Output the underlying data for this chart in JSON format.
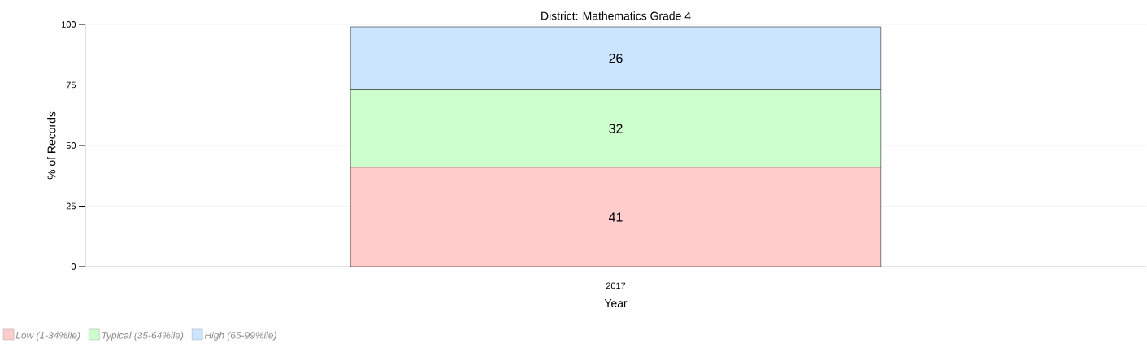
{
  "chart_data": {
    "type": "bar",
    "title": "District: Mathematics Grade 4",
    "xlabel": "Year",
    "ylabel": "% of Records",
    "categories": [
      "2017"
    ],
    "series": [
      {
        "name": "Low (1-34%ile)",
        "color": "#ffcccc",
        "values": [
          41
        ]
      },
      {
        "name": "Typical (35-64%ile)",
        "color": "#ccffcc",
        "values": [
          32
        ]
      },
      {
        "name": "High (65-99%ile)",
        "color": "#cce5ff",
        "values": [
          26
        ]
      }
    ],
    "stacked": true,
    "data_labels": true,
    "ylim": [
      0,
      100
    ],
    "yticks": [
      0,
      25,
      50,
      75,
      100
    ],
    "grid": "y",
    "legend": "bottom left"
  }
}
